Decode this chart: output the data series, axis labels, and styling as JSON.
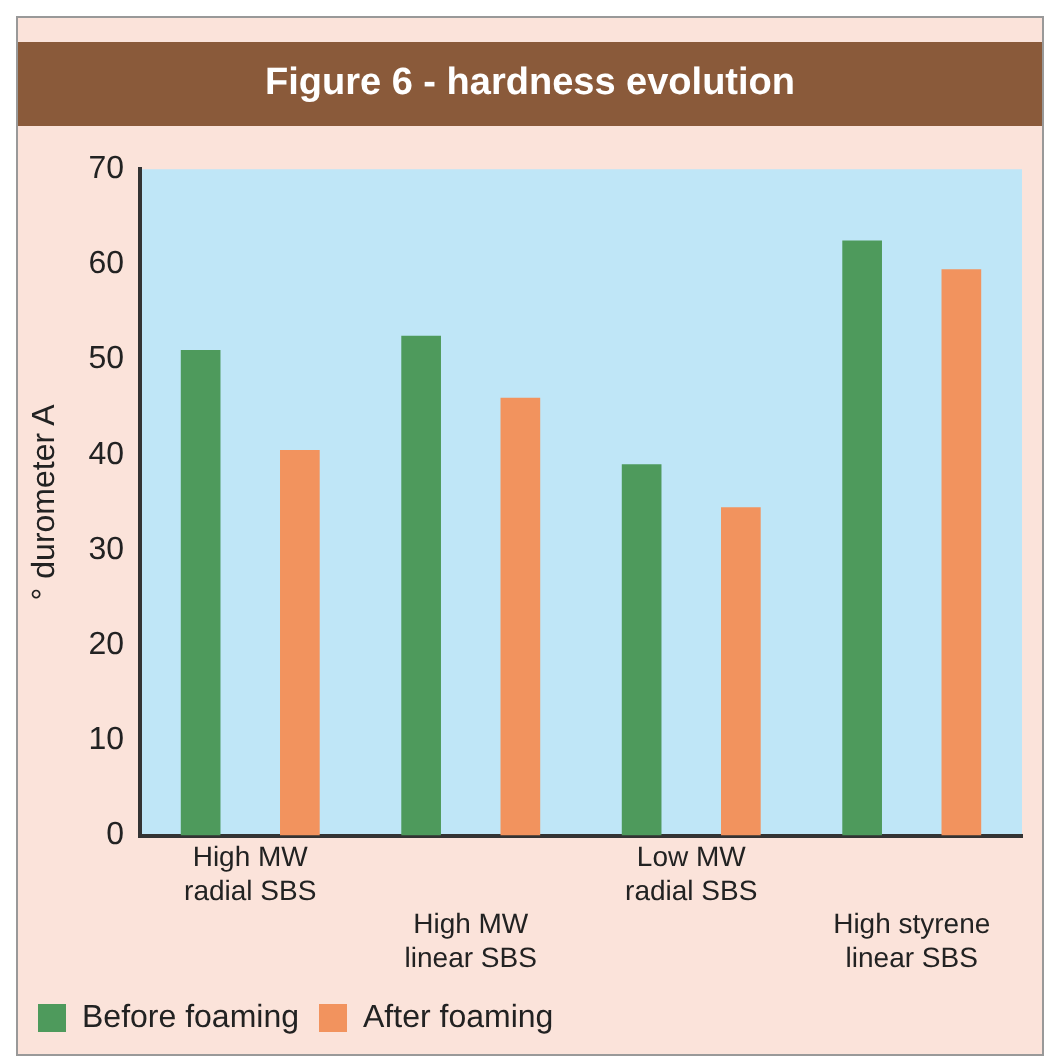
{
  "chart_data": {
    "type": "bar",
    "title": "Figure 6 - hardness evolution",
    "ylabel": "° durometer A",
    "categories": [
      "High MW radial SBS",
      "High MW linear SBS",
      "Low MW radial SBS",
      "High styrene linear SBS"
    ],
    "series": [
      {
        "name": "Before foaming",
        "color": "#4e9a5c",
        "values": [
          51,
          52.5,
          39,
          62.5
        ]
      },
      {
        "name": "After foaming",
        "color": "#f2935e",
        "values": [
          40.5,
          46,
          34.5,
          59.5
        ]
      }
    ],
    "ylim": [
      0,
      70
    ],
    "yticks": [
      0,
      10,
      20,
      30,
      40,
      50,
      60,
      70
    ],
    "grid": false,
    "legend": "bottom left"
  }
}
